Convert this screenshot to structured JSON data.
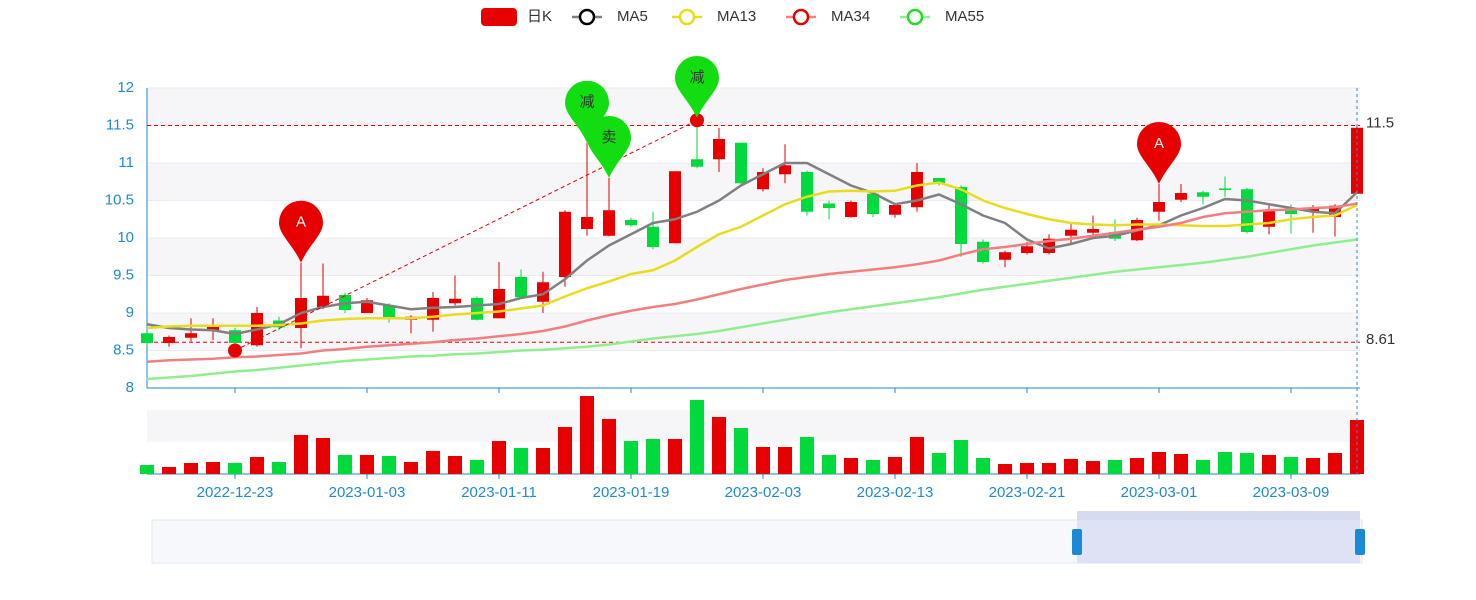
{
  "chart_data": {
    "type": "candlestick",
    "categories": [
      null,
      null,
      null,
      null,
      "2022-12-23",
      null,
      null,
      null,
      null,
      null,
      "2023-01-03",
      null,
      null,
      null,
      null,
      null,
      "2023-01-11",
      null,
      null,
      null,
      null,
      null,
      "2023-01-19",
      null,
      null,
      null,
      null,
      null,
      "2023-02-03",
      null,
      null,
      null,
      null,
      null,
      "2023-02-13",
      null,
      null,
      null,
      null,
      null,
      "2023-02-21",
      null,
      null,
      null,
      null,
      null,
      "2023-03-01",
      null,
      null,
      null,
      null,
      null,
      "2023-03-09",
      null,
      null,
      null
    ],
    "ylim": [
      8,
      12
    ],
    "yticks": [
      8,
      8.5,
      9,
      9.5,
      10,
      10.5,
      11,
      11.5,
      12
    ],
    "split_area": true,
    "up_color": "#e60000",
    "down_color": "#00da3c",
    "series": [
      {
        "name": "日K",
        "type": "candlestick",
        "color": "#e60000",
        "values": [
          [
            8.73,
            8.6,
            8.57,
            8.75
          ],
          [
            8.6,
            8.68,
            8.55,
            8.7
          ],
          [
            8.67,
            8.73,
            8.62,
            8.93
          ],
          [
            8.77,
            8.84,
            8.64,
            8.93
          ],
          [
            8.77,
            8.6,
            8.55,
            8.8
          ],
          [
            8.57,
            9.0,
            8.55,
            9.08
          ],
          [
            8.9,
            8.81,
            8.77,
            8.95
          ],
          [
            8.8,
            9.2,
            8.53,
            9.67
          ],
          [
            9.08,
            9.23,
            9.05,
            9.66
          ],
          [
            9.24,
            9.04,
            9.0,
            9.27
          ],
          [
            9.0,
            9.17,
            9.0,
            9.2
          ],
          [
            9.1,
            8.93,
            8.87,
            9.13
          ],
          [
            8.91,
            8.95,
            8.73,
            8.97
          ],
          [
            8.91,
            9.2,
            8.75,
            9.28
          ],
          [
            9.13,
            9.19,
            9.1,
            9.5
          ],
          [
            9.2,
            8.91,
            8.9,
            9.22
          ],
          [
            8.93,
            9.32,
            8.93,
            9.68
          ],
          [
            9.48,
            9.21,
            9.2,
            9.58
          ],
          [
            9.15,
            9.41,
            9.0,
            9.55
          ],
          [
            9.48,
            10.35,
            9.35,
            10.37
          ],
          [
            10.12,
            10.28,
            10.03,
            11.27
          ],
          [
            10.03,
            10.37,
            10.02,
            10.8
          ],
          [
            10.24,
            10.17,
            10.15,
            10.27
          ],
          [
            10.15,
            9.88,
            9.85,
            10.35
          ],
          [
            9.93,
            10.89,
            9.93,
            10.89
          ],
          [
            11.05,
            10.95,
            10.93,
            11.6
          ],
          [
            11.05,
            11.32,
            10.88,
            11.47
          ],
          [
            11.27,
            10.73,
            10.72,
            11.27
          ],
          [
            10.65,
            10.88,
            10.62,
            10.93
          ],
          [
            10.85,
            10.97,
            10.73,
            11.25
          ],
          [
            10.88,
            10.35,
            10.3,
            10.9
          ],
          [
            10.46,
            10.4,
            10.25,
            10.5
          ],
          [
            10.28,
            10.48,
            10.27,
            10.5
          ],
          [
            10.59,
            10.32,
            10.28,
            10.6
          ],
          [
            10.31,
            10.44,
            10.27,
            10.47
          ],
          [
            10.41,
            10.88,
            10.35,
            11.0
          ],
          [
            10.8,
            10.72,
            10.7,
            10.8
          ],
          [
            10.68,
            9.92,
            9.75,
            10.7
          ],
          [
            9.95,
            9.68,
            9.66,
            9.98
          ],
          [
            9.71,
            9.81,
            9.61,
            9.83
          ],
          [
            9.8,
            9.89,
            9.78,
            9.95
          ],
          [
            9.8,
            9.99,
            9.78,
            10.05
          ],
          [
            10.03,
            10.11,
            9.92,
            10.2
          ],
          [
            10.07,
            10.12,
            10.03,
            10.3
          ],
          [
            10.08,
            9.99,
            9.96,
            10.25
          ],
          [
            9.97,
            10.24,
            9.96,
            10.27
          ],
          [
            10.35,
            10.48,
            10.23,
            10.72
          ],
          [
            10.51,
            10.6,
            10.48,
            10.72
          ],
          [
            10.61,
            10.55,
            10.45,
            10.63
          ],
          [
            10.66,
            10.64,
            10.55,
            10.82
          ],
          [
            10.65,
            10.08,
            10.06,
            10.67
          ],
          [
            10.15,
            10.37,
            10.05,
            10.45
          ],
          [
            10.39,
            10.32,
            10.06,
            10.45
          ],
          [
            10.35,
            10.4,
            10.07,
            10.44
          ],
          [
            10.28,
            10.43,
            10.02,
            10.45
          ],
          [
            10.59,
            11.47,
            10.59,
            11.5
          ]
        ]
      },
      {
        "name": "MA5",
        "type": "line",
        "color": "#808080",
        "icon_color": "#000000",
        "values": [
          8.85,
          8.8,
          8.78,
          8.77,
          8.72,
          8.78,
          8.85,
          9.0,
          9.08,
          9.13,
          9.15,
          9.1,
          9.05,
          9.07,
          9.08,
          9.1,
          9.12,
          9.2,
          9.25,
          9.45,
          9.7,
          9.9,
          10.05,
          10.2,
          10.25,
          10.35,
          10.5,
          10.7,
          10.85,
          11.0,
          11.0,
          10.85,
          10.7,
          10.6,
          10.45,
          10.5,
          10.58,
          10.45,
          10.3,
          10.2,
          9.98,
          9.86,
          9.92,
          10.0,
          10.03,
          10.1,
          10.17,
          10.3,
          10.4,
          10.52,
          10.5,
          10.45,
          10.4,
          10.35,
          10.33,
          10.61
        ]
      },
      {
        "name": "MA13",
        "type": "line",
        "color": "#e8dc1e",
        "icon_color": "#e8dc1e",
        "values": [
          8.8,
          8.82,
          8.83,
          8.83,
          8.83,
          8.83,
          8.84,
          8.86,
          8.9,
          8.92,
          8.93,
          8.93,
          8.93,
          8.95,
          8.98,
          9.0,
          9.02,
          9.06,
          9.1,
          9.22,
          9.33,
          9.42,
          9.52,
          9.57,
          9.7,
          9.88,
          10.05,
          10.15,
          10.3,
          10.45,
          10.55,
          10.62,
          10.63,
          10.62,
          10.63,
          10.7,
          10.74,
          10.65,
          10.5,
          10.4,
          10.32,
          10.25,
          10.2,
          10.18,
          10.17,
          10.18,
          10.18,
          10.17,
          10.16,
          10.16,
          10.18,
          10.2,
          10.25,
          10.28,
          10.3,
          10.44
        ]
      },
      {
        "name": "MA34",
        "type": "line",
        "color": "#f08080",
        "icon_color": "#e60000",
        "values": [
          8.35,
          8.37,
          8.38,
          8.39,
          8.41,
          8.42,
          8.44,
          8.46,
          8.5,
          8.52,
          8.55,
          8.57,
          8.59,
          8.61,
          8.64,
          8.66,
          8.69,
          8.72,
          8.76,
          8.82,
          8.9,
          8.97,
          9.03,
          9.08,
          9.12,
          9.18,
          9.25,
          9.32,
          9.38,
          9.44,
          9.48,
          9.52,
          9.55,
          9.58,
          9.61,
          9.65,
          9.7,
          9.78,
          9.85,
          9.88,
          9.92,
          9.96,
          9.99,
          10.03,
          10.07,
          10.11,
          10.15,
          10.2,
          10.28,
          10.33,
          10.35,
          10.37,
          10.38,
          10.4,
          10.41,
          10.46
        ]
      },
      {
        "name": "MA55",
        "type": "line",
        "color": "#90ee90",
        "icon_color": "#22dd22",
        "values": [
          8.12,
          8.14,
          8.16,
          8.19,
          8.22,
          8.24,
          8.27,
          8.3,
          8.33,
          8.36,
          8.38,
          8.4,
          8.42,
          8.43,
          8.45,
          8.46,
          8.48,
          8.5,
          8.51,
          8.53,
          8.55,
          8.58,
          8.62,
          8.66,
          8.69,
          8.72,
          8.76,
          8.81,
          8.86,
          8.91,
          8.96,
          9.01,
          9.05,
          9.09,
          9.13,
          9.17,
          9.21,
          9.26,
          9.31,
          9.35,
          9.39,
          9.43,
          9.47,
          9.51,
          9.55,
          9.58,
          9.61,
          9.64,
          9.67,
          9.71,
          9.75,
          9.8,
          9.85,
          9.9,
          9.94,
          9.98
        ]
      }
    ],
    "volume": {
      "ylim": [
        0,
        80
      ],
      "values": [
        9,
        7,
        11,
        12,
        11,
        17,
        12,
        39,
        36,
        19,
        19,
        18,
        12,
        23,
        18,
        14,
        33,
        26,
        26,
        47,
        78,
        55,
        33,
        35,
        35,
        74,
        57,
        46,
        27,
        27,
        37,
        19,
        16,
        14,
        17,
        37,
        21,
        34,
        16,
        10,
        11,
        11,
        15,
        13,
        14,
        16,
        22,
        20,
        14,
        22,
        21,
        19,
        17,
        16,
        21,
        54
      ]
    },
    "mark_lines": [
      11.5,
      8.61
    ],
    "trend_line": [
      {
        "index": 4,
        "value": 8.5
      },
      {
        "index": 25,
        "value": 11.57
      }
    ],
    "pins": [
      {
        "label": "A",
        "index": 7,
        "value": 9.67,
        "color": "#e60000"
      },
      {
        "label": "减",
        "index": 20,
        "value": 11.27,
        "color": "#11dd11"
      },
      {
        "label": "卖",
        "index": 21,
        "value": 10.8,
        "color": "#11dd11"
      },
      {
        "label": "减",
        "index": 25,
        "value": 11.6,
        "color": "#11dd11"
      },
      {
        "label": "A",
        "index": 46,
        "value": 10.72,
        "color": "#e60000"
      }
    ]
  }
}
